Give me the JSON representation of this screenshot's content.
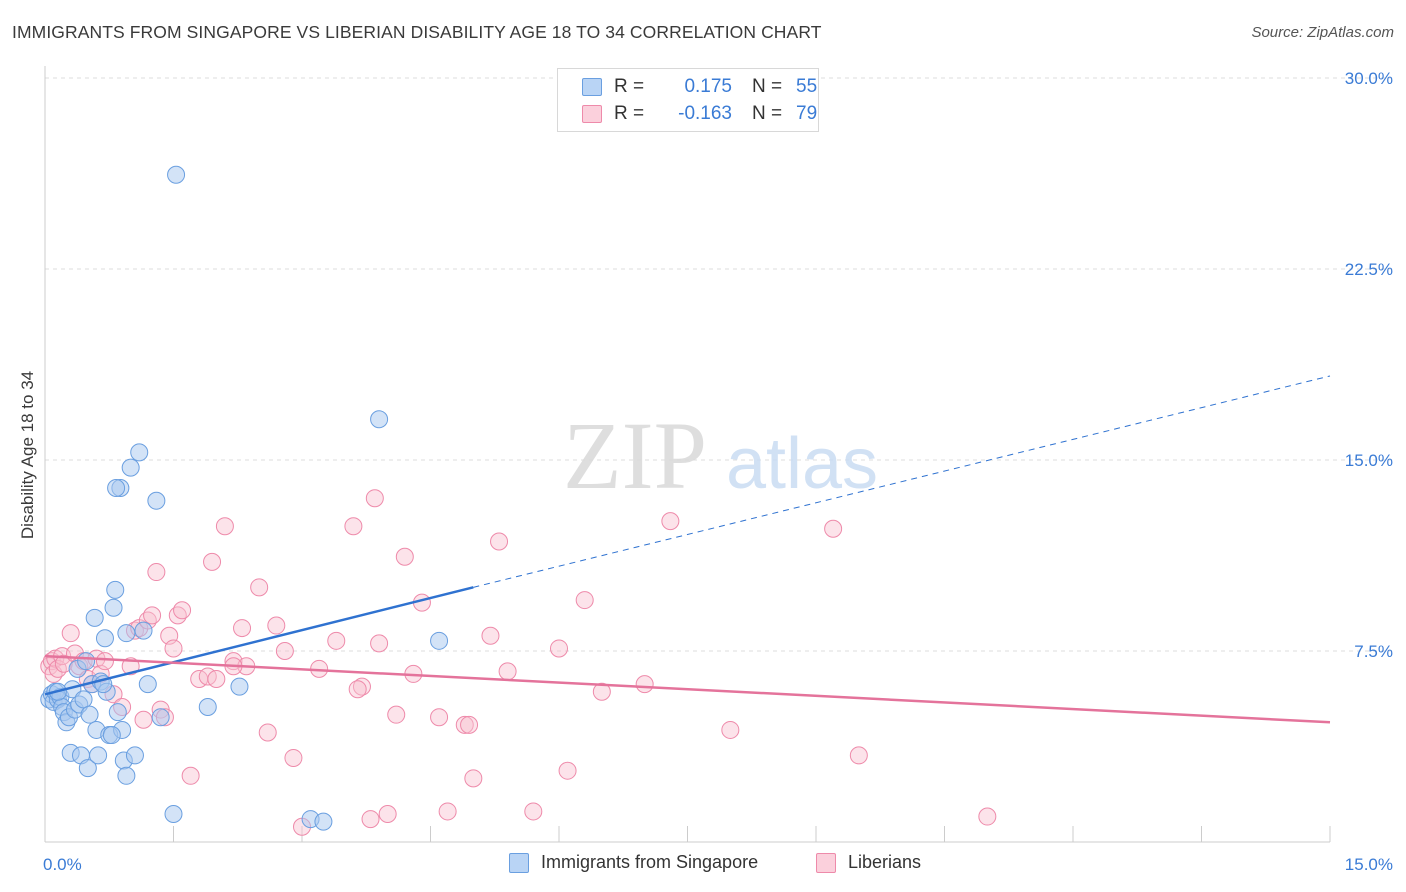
{
  "header": {
    "title": "IMMIGRANTS FROM SINGAPORE VS LIBERIAN DISABILITY AGE 18 TO 34 CORRELATION CHART",
    "source": "Source: ZipAtlas.com"
  },
  "watermark": {
    "zip": "ZIP",
    "atlas": "atlas"
  },
  "legend": {
    "rows": [
      {
        "r_label": "R =",
        "r_value": "0.175",
        "n_label": "N =",
        "n_value": "55"
      },
      {
        "r_label": "R =",
        "r_value": "-0.163",
        "n_label": "N =",
        "n_value": "79"
      }
    ]
  },
  "bottom_legend": {
    "series1": "Immigrants from Singapore",
    "series2": "Liberians"
  },
  "colors": {
    "blue_fill": "#a8c8f0",
    "blue_stroke": "#6a9fe0",
    "blue_line": "#2f72d0",
    "pink_fill": "#f8c0d0",
    "pink_stroke": "#ee8aaa",
    "pink_line": "#e4739b",
    "tick_label": "#3a7bd5",
    "grid": "#dddddd"
  },
  "chart_data": {
    "type": "scatter",
    "title": "IMMIGRANTS FROM SINGAPORE VS LIBERIAN DISABILITY AGE 18 TO 34 CORRELATION CHART",
    "xlabel": "",
    "ylabel": "Disability Age 18 to 34",
    "xlim": [
      0,
      15
    ],
    "ylim": [
      0,
      30
    ],
    "x_tick_labels": [
      "0.0%",
      "15.0%"
    ],
    "y_ticks": [
      7.5,
      15.0,
      22.5,
      30.0
    ],
    "y_tick_labels": [
      "7.5%",
      "15.0%",
      "22.5%",
      "30.0%"
    ],
    "grid": "horizontal dashed",
    "legend_position": "top-center",
    "series": [
      {
        "name": "Immigrants from Singapore",
        "color": "#a8c8f0",
        "points": [
          [
            0.05,
            5.6
          ],
          [
            0.08,
            5.8
          ],
          [
            0.1,
            5.5
          ],
          [
            0.12,
            5.9
          ],
          [
            0.15,
            5.6
          ],
          [
            0.18,
            5.7
          ],
          [
            0.2,
            5.3
          ],
          [
            0.22,
            5.1
          ],
          [
            0.25,
            4.7
          ],
          [
            0.28,
            4.9
          ],
          [
            0.3,
            3.5
          ],
          [
            0.32,
            6.0
          ],
          [
            0.35,
            5.2
          ],
          [
            0.38,
            6.8
          ],
          [
            0.4,
            5.4
          ],
          [
            0.42,
            3.4
          ],
          [
            0.45,
            5.6
          ],
          [
            0.48,
            7.1
          ],
          [
            0.5,
            2.9
          ],
          [
            0.52,
            5.0
          ],
          [
            0.55,
            6.2
          ],
          [
            0.58,
            8.8
          ],
          [
            0.6,
            4.4
          ],
          [
            0.62,
            3.4
          ],
          [
            0.65,
            6.3
          ],
          [
            0.7,
            8.0
          ],
          [
            0.72,
            5.9
          ],
          [
            0.75,
            4.2
          ],
          [
            0.8,
            9.2
          ],
          [
            0.82,
            9.9
          ],
          [
            0.85,
            5.1
          ],
          [
            0.88,
            13.9
          ],
          [
            0.9,
            4.4
          ],
          [
            0.92,
            3.2
          ],
          [
            0.95,
            2.6
          ],
          [
            1.0,
            14.7
          ],
          [
            1.05,
            3.4
          ],
          [
            1.1,
            15.3
          ],
          [
            1.15,
            8.3
          ],
          [
            1.2,
            6.2
          ],
          [
            1.3,
            13.4
          ],
          [
            1.35,
            4.9
          ],
          [
            1.5,
            1.1
          ],
          [
            1.53,
            26.2
          ],
          [
            1.9,
            5.3
          ],
          [
            2.27,
            6.1
          ],
          [
            3.1,
            0.9
          ],
          [
            3.25,
            0.8
          ],
          [
            3.9,
            16.6
          ],
          [
            4.6,
            7.9
          ],
          [
            0.68,
            6.2
          ],
          [
            0.78,
            4.2
          ],
          [
            0.83,
            13.9
          ],
          [
            0.95,
            8.2
          ],
          [
            0.15,
            5.9
          ]
        ]
      },
      {
        "name": "Liberians",
        "color": "#f8c0d0",
        "points": [
          [
            0.05,
            6.9
          ],
          [
            0.08,
            7.1
          ],
          [
            0.1,
            6.6
          ],
          [
            0.12,
            7.2
          ],
          [
            0.15,
            6.8
          ],
          [
            0.2,
            7.3
          ],
          [
            0.22,
            7.0
          ],
          [
            0.3,
            8.2
          ],
          [
            0.35,
            7.4
          ],
          [
            0.4,
            6.9
          ],
          [
            0.45,
            7.1
          ],
          [
            0.5,
            6.4
          ],
          [
            0.6,
            7.2
          ],
          [
            0.65,
            6.6
          ],
          [
            0.7,
            7.1
          ],
          [
            0.8,
            5.8
          ],
          [
            0.9,
            5.3
          ],
          [
            1.0,
            6.9
          ],
          [
            1.05,
            8.3
          ],
          [
            1.1,
            8.4
          ],
          [
            1.2,
            8.7
          ],
          [
            1.25,
            8.9
          ],
          [
            1.3,
            10.6
          ],
          [
            1.35,
            5.2
          ],
          [
            1.4,
            4.9
          ],
          [
            1.45,
            8.1
          ],
          [
            1.5,
            7.6
          ],
          [
            1.55,
            8.9
          ],
          [
            1.6,
            9.1
          ],
          [
            1.7,
            2.6
          ],
          [
            1.8,
            6.4
          ],
          [
            1.9,
            6.5
          ],
          [
            1.95,
            11.0
          ],
          [
            2.1,
            12.4
          ],
          [
            2.2,
            7.1
          ],
          [
            2.3,
            8.4
          ],
          [
            2.35,
            6.9
          ],
          [
            2.5,
            10.0
          ],
          [
            2.6,
            4.3
          ],
          [
            2.7,
            8.5
          ],
          [
            2.8,
            7.5
          ],
          [
            2.9,
            3.3
          ],
          [
            3.0,
            0.6
          ],
          [
            3.2,
            6.8
          ],
          [
            3.4,
            7.9
          ],
          [
            3.6,
            12.4
          ],
          [
            3.7,
            6.1
          ],
          [
            3.8,
            0.9
          ],
          [
            3.9,
            7.8
          ],
          [
            4.0,
            1.1
          ],
          [
            4.1,
            5.0
          ],
          [
            4.2,
            11.2
          ],
          [
            4.3,
            6.6
          ],
          [
            4.4,
            9.4
          ],
          [
            4.6,
            4.9
          ],
          [
            4.7,
            1.2
          ],
          [
            4.9,
            4.6
          ],
          [
            5.0,
            2.5
          ],
          [
            5.2,
            8.1
          ],
          [
            5.3,
            11.8
          ],
          [
            5.4,
            6.7
          ],
          [
            5.7,
            1.2
          ],
          [
            6.0,
            7.6
          ],
          [
            6.1,
            2.8
          ],
          [
            6.3,
            9.5
          ],
          [
            6.5,
            5.9
          ],
          [
            7.0,
            6.2
          ],
          [
            7.3,
            12.6
          ],
          [
            8.0,
            4.4
          ],
          [
            9.2,
            12.3
          ],
          [
            9.5,
            3.4
          ],
          [
            11.0,
            1.0
          ],
          [
            3.85,
            13.5
          ],
          [
            2.0,
            6.4
          ],
          [
            1.15,
            4.8
          ],
          [
            0.55,
            6.2
          ],
          [
            2.2,
            6.9
          ],
          [
            4.95,
            4.6
          ],
          [
            3.65,
            6.0
          ]
        ]
      }
    ],
    "trend_lines": [
      {
        "series": "Immigrants from Singapore",
        "x": [
          0,
          5,
          15
        ],
        "y": [
          5.8,
          10.0,
          18.3
        ],
        "solid_until_x": 5
      },
      {
        "series": "Liberians",
        "x": [
          0,
          15
        ],
        "y": [
          7.3,
          4.7
        ]
      }
    ]
  }
}
